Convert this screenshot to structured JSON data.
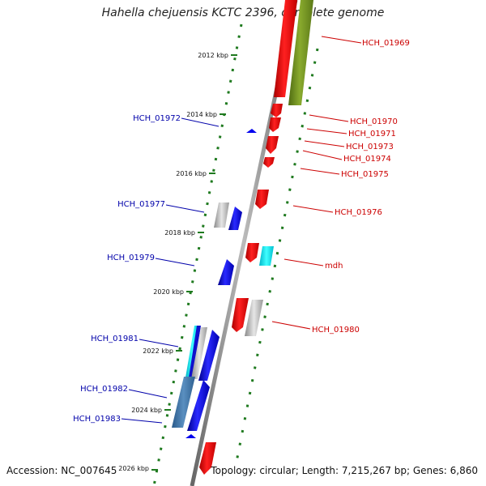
{
  "title": "Hahella chejuensis KCTC 2396, complete genome",
  "footer": {
    "accession": "Accession: NC_007645",
    "topology": "Topology: circular; Length: 7,215,267 bp; Genes: 6,860"
  },
  "colors": {
    "backbone": "#888888",
    "ruler": "#1f7a1f",
    "plus_strand": "#ff0000",
    "minus_strand": "#0000ee",
    "plus_label": "#cc0000",
    "minus_label": "#0000aa"
  },
  "ruler_ticks": [
    "2012 kbp",
    "2014 kbp",
    "2016 kbp",
    "2018 kbp",
    "2020 kbp",
    "2022 kbp",
    "2024 kbp",
    "2026 kbp"
  ],
  "genes_right": [
    {
      "label": "HCH_01969"
    },
    {
      "label": "HCH_01970"
    },
    {
      "label": "HCH_01971"
    },
    {
      "label": "HCH_01973"
    },
    {
      "label": "HCH_01974"
    },
    {
      "label": "HCH_01975"
    },
    {
      "label": "HCH_01976"
    },
    {
      "label": "mdh"
    },
    {
      "label": "HCH_01980"
    }
  ],
  "genes_left": [
    {
      "label": "HCH_01972"
    },
    {
      "label": "HCH_01977"
    },
    {
      "label": "HCH_01979"
    },
    {
      "label": "HCH_01981"
    },
    {
      "label": "HCH_01982"
    },
    {
      "label": "HCH_01983"
    }
  ]
}
